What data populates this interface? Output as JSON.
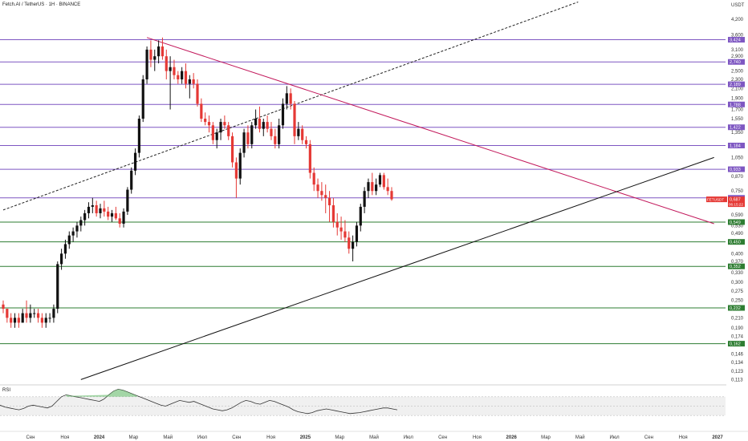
{
  "header": {
    "title": "Fetch.AI / TetherUS · 1Н · BINANCE"
  },
  "currency": "USDT",
  "chart_data": {
    "type": "candlestick",
    "title": "Fetch.AI / TetherUS · 1Н · BINANCE",
    "y_scale": "log",
    "ylim": [
      0.108,
      4.9
    ],
    "y_ticks": [
      "4,200",
      "3,600",
      "3,100",
      "2,900",
      "2,500",
      "2,300",
      "2,100",
      "1,900",
      "1,700",
      "1,550",
      "1,350",
      "1,050",
      "0,870",
      "0,750",
      "0,590",
      "0,530",
      "0,490",
      "0,400",
      "0,370",
      "0,330",
      "0,300",
      "0,275",
      "0,250",
      "0,210",
      "0,190",
      "0,174",
      "0,146",
      "0,134",
      "0,123",
      "0,113"
    ],
    "x_ticks": [
      "Сен",
      "Ноя",
      "2024",
      "Мар",
      "Май",
      "Июл",
      "Сен",
      "Ноя",
      "2025",
      "Мар",
      "Май",
      "Июл",
      "Сен",
      "Ноя",
      "2026",
      "Мар",
      "Май",
      "Июл",
      "Сен",
      "Ноя",
      "2027"
    ],
    "levels": [
      {
        "value": 3.424,
        "label": "3,424",
        "color": "#7e57c2"
      },
      {
        "value": 2.74,
        "label": "2,740",
        "color": "#7e57c2"
      },
      {
        "value": 2.189,
        "label": "2,189",
        "color": "#7e57c2"
      },
      {
        "value": 1.788,
        "label": "1,788",
        "color": "#7e57c2"
      },
      {
        "value": 1.422,
        "label": "1,422",
        "color": "#7e57c2"
      },
      {
        "value": 1.184,
        "label": "1,184",
        "color": "#7e57c2"
      },
      {
        "value": 0.933,
        "label": "0,933",
        "color": "#7e57c2"
      },
      {
        "value": 0.7,
        "label": "0,700",
        "color": "#7e57c2"
      },
      {
        "value": 0.549,
        "label": "0,549",
        "color": "#2e7d32"
      },
      {
        "value": 0.45,
        "label": "0,450",
        "color": "#2e7d32"
      },
      {
        "value": 0.352,
        "label": "0,352",
        "color": "#2e7d32"
      },
      {
        "value": 0.232,
        "label": "0,232",
        "color": "#2e7d32"
      },
      {
        "value": 0.162,
        "label": "0,162",
        "color": "#2e7d32"
      }
    ],
    "current_price": {
      "symbol": "FETUSDT",
      "value": 0.687,
      "label": "0,687",
      "countdown": "06:15:22"
    },
    "candles": [
      [
        0.24,
        0.25,
        0.22,
        0.23
      ],
      [
        0.23,
        0.23,
        0.2,
        0.21
      ],
      [
        0.21,
        0.22,
        0.19,
        0.2
      ],
      [
        0.2,
        0.22,
        0.19,
        0.21
      ],
      [
        0.21,
        0.22,
        0.19,
        0.2
      ],
      [
        0.2,
        0.23,
        0.2,
        0.22
      ],
      [
        0.22,
        0.25,
        0.2,
        0.21
      ],
      [
        0.21,
        0.24,
        0.2,
        0.22
      ],
      [
        0.22,
        0.23,
        0.21,
        0.22
      ],
      [
        0.22,
        0.23,
        0.2,
        0.21
      ],
      [
        0.21,
        0.22,
        0.19,
        0.2
      ],
      [
        0.2,
        0.22,
        0.19,
        0.21
      ],
      [
        0.21,
        0.22,
        0.2,
        0.21
      ],
      [
        0.21,
        0.24,
        0.2,
        0.23
      ],
      [
        0.23,
        0.37,
        0.22,
        0.36
      ],
      [
        0.36,
        0.42,
        0.34,
        0.4
      ],
      [
        0.4,
        0.46,
        0.38,
        0.44
      ],
      [
        0.44,
        0.5,
        0.42,
        0.48
      ],
      [
        0.48,
        0.52,
        0.45,
        0.5
      ],
      [
        0.5,
        0.55,
        0.47,
        0.53
      ],
      [
        0.53,
        0.58,
        0.5,
        0.56
      ],
      [
        0.56,
        0.62,
        0.53,
        0.6
      ],
      [
        0.6,
        0.67,
        0.57,
        0.64
      ],
      [
        0.64,
        0.7,
        0.6,
        0.65
      ],
      [
        0.65,
        0.68,
        0.58,
        0.6
      ],
      [
        0.6,
        0.66,
        0.57,
        0.63
      ],
      [
        0.63,
        0.68,
        0.58,
        0.61
      ],
      [
        0.61,
        0.64,
        0.56,
        0.58
      ],
      [
        0.58,
        0.62,
        0.55,
        0.6
      ],
      [
        0.6,
        0.64,
        0.56,
        0.57
      ],
      [
        0.57,
        0.6,
        0.52,
        0.54
      ],
      [
        0.54,
        0.63,
        0.52,
        0.61
      ],
      [
        0.61,
        0.78,
        0.59,
        0.76
      ],
      [
        0.76,
        0.95,
        0.73,
        0.92
      ],
      [
        0.92,
        1.15,
        0.88,
        1.1
      ],
      [
        1.1,
        1.6,
        1.05,
        1.55
      ],
      [
        1.55,
        2.4,
        1.5,
        2.3
      ],
      [
        2.3,
        3.2,
        2.2,
        3.1
      ],
      [
        3.1,
        3.4,
        2.6,
        2.8
      ],
      [
        2.8,
        3.1,
        2.5,
        2.9
      ],
      [
        2.9,
        3.4,
        2.7,
        3.2
      ],
      [
        3.2,
        3.5,
        2.8,
        2.9
      ],
      [
        2.9,
        3.1,
        2.3,
        2.5
      ],
      [
        2.5,
        2.9,
        1.7,
        2.6
      ],
      [
        2.6,
        2.8,
        2.3,
        2.4
      ],
      [
        2.4,
        2.5,
        2.2,
        2.3
      ],
      [
        2.3,
        2.6,
        2.2,
        2.5
      ],
      [
        2.5,
        2.7,
        2.1,
        2.2
      ],
      [
        2.2,
        2.4,
        1.9,
        2.3
      ],
      [
        2.3,
        2.45,
        2.1,
        2.2
      ],
      [
        2.2,
        2.3,
        1.75,
        1.8
      ],
      [
        1.8,
        1.9,
        1.5,
        1.55
      ],
      [
        1.55,
        1.65,
        1.45,
        1.5
      ],
      [
        1.5,
        1.6,
        1.35,
        1.45
      ],
      [
        1.45,
        1.5,
        1.2,
        1.25
      ],
      [
        1.25,
        1.4,
        1.15,
        1.35
      ],
      [
        1.35,
        1.55,
        1.25,
        1.5
      ],
      [
        1.5,
        1.6,
        1.4,
        1.45
      ],
      [
        1.45,
        1.5,
        1.25,
        1.3
      ],
      [
        1.3,
        1.35,
        0.95,
        1.0
      ],
      [
        1.0,
        1.05,
        0.7,
        0.85
      ],
      [
        0.85,
        1.15,
        0.8,
        1.1
      ],
      [
        1.1,
        1.4,
        1.05,
        1.35
      ],
      [
        1.35,
        1.45,
        1.15,
        1.2
      ],
      [
        1.2,
        1.5,
        1.15,
        1.45
      ],
      [
        1.45,
        1.7,
        1.4,
        1.55
      ],
      [
        1.55,
        1.75,
        1.35,
        1.4
      ],
      [
        1.4,
        1.55,
        1.3,
        1.5
      ],
      [
        1.5,
        1.6,
        1.35,
        1.4
      ],
      [
        1.4,
        1.5,
        1.25,
        1.3
      ],
      [
        1.3,
        1.4,
        1.15,
        1.2
      ],
      [
        1.2,
        1.55,
        1.15,
        1.45
      ],
      [
        1.45,
        1.9,
        1.4,
        1.8
      ],
      [
        1.8,
        2.15,
        1.7,
        2.0
      ],
      [
        2.0,
        2.1,
        1.7,
        1.8
      ],
      [
        1.8,
        1.85,
        1.2,
        1.3
      ],
      [
        1.3,
        1.5,
        1.25,
        1.4
      ],
      [
        1.4,
        1.45,
        1.2,
        1.25
      ],
      [
        1.25,
        1.3,
        1.15,
        1.2
      ],
      [
        1.2,
        1.25,
        0.85,
        0.9
      ],
      [
        0.9,
        0.95,
        0.75,
        0.8
      ],
      [
        0.8,
        0.85,
        0.7,
        0.75
      ],
      [
        0.75,
        0.82,
        0.68,
        0.72
      ],
      [
        0.72,
        0.8,
        0.6,
        0.7
      ],
      [
        0.7,
        0.75,
        0.55,
        0.65
      ],
      [
        0.65,
        0.7,
        0.52,
        0.55
      ],
      [
        0.55,
        0.6,
        0.48,
        0.52
      ],
      [
        0.52,
        0.58,
        0.46,
        0.5
      ],
      [
        0.5,
        0.56,
        0.45,
        0.47
      ],
      [
        0.47,
        0.5,
        0.4,
        0.42
      ],
      [
        0.42,
        0.48,
        0.37,
        0.45
      ],
      [
        0.45,
        0.55,
        0.43,
        0.53
      ],
      [
        0.53,
        0.66,
        0.5,
        0.64
      ],
      [
        0.64,
        0.78,
        0.6,
        0.75
      ],
      [
        0.75,
        0.85,
        0.7,
        0.82
      ],
      [
        0.82,
        0.9,
        0.72,
        0.75
      ],
      [
        0.75,
        0.85,
        0.72,
        0.8
      ],
      [
        0.8,
        0.9,
        0.78,
        0.88
      ],
      [
        0.88,
        0.9,
        0.76,
        0.78
      ],
      [
        0.78,
        0.85,
        0.72,
        0.75
      ],
      [
        0.75,
        0.78,
        0.68,
        0.69
      ]
    ],
    "trendlines": [
      {
        "style": "dashed",
        "color": "#222222",
        "from": [
          0,
          0.62
        ],
        "to": [
          148,
          5.0
        ]
      },
      {
        "style": "solid",
        "color": "#c2185b",
        "from": [
          37,
          3.5
        ],
        "to": [
          183,
          0.54
        ]
      },
      {
        "style": "solid",
        "color": "#111111",
        "from": [
          20,
          0.113
        ],
        "to": [
          183,
          1.05
        ]
      }
    ],
    "rsi": {
      "label": "RSI",
      "y_ticks": [
        "80,00",
        "60,00",
        "40,00",
        "28,00"
      ],
      "band": [
        30,
        70
      ],
      "values": [
        52,
        48,
        46,
        44,
        42,
        45,
        50,
        52,
        50,
        48,
        46,
        50,
        60,
        70,
        74,
        72,
        70,
        68,
        66,
        64,
        62,
        60,
        65,
        74,
        82,
        86,
        84,
        80,
        76,
        72,
        68,
        64,
        60,
        56,
        52,
        50,
        54,
        58,
        62,
        60,
        58,
        60,
        56,
        52,
        48,
        44,
        42,
        40,
        42,
        46,
        52,
        58,
        62,
        60,
        56,
        54,
        58,
        62,
        60,
        56,
        52,
        48,
        42,
        38,
        36,
        34,
        36,
        40,
        42,
        44,
        42,
        40,
        38,
        36,
        34,
        35,
        36,
        38,
        40,
        42,
        44,
        46,
        46,
        44,
        42
      ]
    }
  }
}
